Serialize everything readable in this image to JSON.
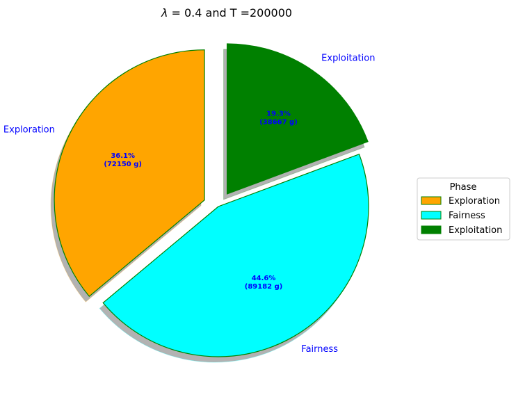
{
  "chart_data": {
    "type": "pie",
    "title_lambda": "λ",
    "title_rest": " = 0.4 and T =200000",
    "start_angle_deg": 90,
    "counterclockwise": true,
    "slices": [
      {
        "label": "Exploration",
        "percent_label": "36.1%",
        "amount_label": "(72150 g)",
        "value": 72150,
        "color": "#FFA500",
        "exploded": true
      },
      {
        "label": "Fairness",
        "percent_label": "44.6%",
        "amount_label": "(89182 g)",
        "value": 89182,
        "color": "#00FFFF",
        "exploded": false
      },
      {
        "label": "Exploitation",
        "percent_label": "19.3%",
        "amount_label": "(38667 g)",
        "value": 38667,
        "color": "#008000",
        "exploded": true
      }
    ],
    "edge_color": "#008000",
    "label_color": "#0000FF",
    "shadow": true,
    "legend": {
      "title": "Phase",
      "placement": "center-right"
    }
  }
}
